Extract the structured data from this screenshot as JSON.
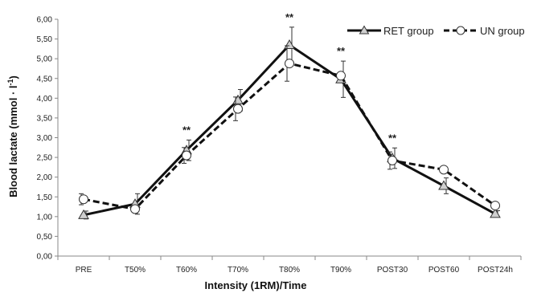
{
  "chart_data": {
    "type": "line",
    "xlabel": "Intensity (1RM)/Time",
    "ylabel": "Blood lactate (mmol · l",
    "ylabel_superscript": "-1",
    "ylabel_suffix": ")",
    "categories": [
      "PRE",
      "T50%",
      "T60%",
      "T70%",
      "T80%",
      "T90%",
      "POST30",
      "POST60",
      "POST24h"
    ],
    "ylim": [
      0,
      6
    ],
    "y_ticks": [
      "0,00",
      "0,50",
      "1,00",
      "1,50",
      "2,00",
      "2,50",
      "3,00",
      "3,50",
      "4,00",
      "4,50",
      "5,00",
      "5,50",
      "6,00"
    ],
    "grid": false,
    "legend_position": "top-right",
    "series": [
      {
        "name": "RET group",
        "marker": "triangle",
        "line_style": "solid",
        "values": [
          1.04,
          1.32,
          2.68,
          3.95,
          5.35,
          4.48,
          2.48,
          1.78,
          1.07
        ],
        "error": [
          0.1,
          0.26,
          0.26,
          0.27,
          0.45,
          0.46,
          0.26,
          0.2,
          0.08
        ]
      },
      {
        "name": "UN group",
        "marker": "circle",
        "line_style": "dashed",
        "values": [
          1.44,
          1.19,
          2.55,
          3.73,
          4.88,
          4.57,
          2.42,
          2.19,
          1.28
        ],
        "error": [
          0.14,
          0.0,
          0.2,
          0.3,
          0.45,
          0.0,
          0.22,
          0.0,
          0.0
        ]
      }
    ],
    "annotations": [
      {
        "category": "T60%",
        "text": "**"
      },
      {
        "category": "T80%",
        "text": "**"
      },
      {
        "category": "T90%",
        "text": "**"
      },
      {
        "category": "POST30",
        "text": "**"
      }
    ]
  }
}
